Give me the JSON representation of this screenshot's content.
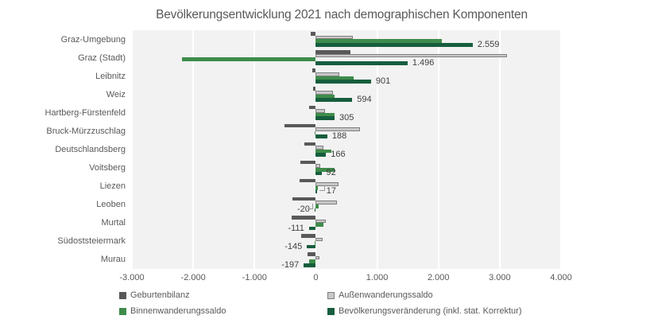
{
  "title": "Bevölkerungsentwicklung 2021 nach demographischen Komponenten",
  "chart_data": {
    "type": "bar",
    "orientation": "horizontal",
    "title": "Bevölkerungsentwicklung 2021 nach demographischen Komponenten",
    "categories": [
      "Graz-Umgebung",
      "Graz (Stadt)",
      "Leibnitz",
      "Weiz",
      "Hartberg-Fürstenfeld",
      "Bruck-Mürzzuschlag",
      "Deutschlandsberg",
      "Voitsberg",
      "Liezen",
      "Leoben",
      "Murtal",
      "Südoststeiermark",
      "Murau"
    ],
    "series": [
      {
        "name": "Geburtenbilanz",
        "color": "#595959",
        "values": [
          -85,
          560,
          -60,
          -45,
          -115,
          -510,
          -190,
          -250,
          -270,
          -380,
          -390,
          -240,
          -130
        ]
      },
      {
        "name": "Außenwanderungssaldo",
        "color": "#c8c8c8",
        "border_color": "#7f7f7f",
        "values": [
          610,
          3120,
          380,
          280,
          150,
          720,
          130,
          70,
          370,
          350,
          160,
          110,
          60
        ]
      },
      {
        "name": "Binnenwanderungssaldo",
        "color": "#3e8c4a",
        "values": [
          2050,
          -2180,
          620,
          310,
          300,
          -20,
          250,
          300,
          30,
          40,
          130,
          -15,
          -115
        ]
      },
      {
        "name": "Bevölkerungsveränderung (inkl. stat. Korrektur)",
        "color": "#165e3e",
        "values": [
          2559,
          1496,
          901,
          594,
          305,
          188,
          166,
          92,
          17,
          -20,
          -111,
          -145,
          -197
        ],
        "data_labels": [
          "2.559",
          "1.496",
          "901",
          "594",
          "305",
          "188",
          "166",
          "92",
          "17",
          "-20",
          "-111",
          "-145",
          "-197"
        ]
      }
    ],
    "xlim": [
      -3000,
      4000
    ],
    "x_ticks": [
      {
        "value": -3000,
        "label": "-3.000"
      },
      {
        "value": -2000,
        "label": "-2.000"
      },
      {
        "value": -1000,
        "label": "-1.000"
      },
      {
        "value": 0,
        "label": "0"
      },
      {
        "value": 1000,
        "label": "1.000"
      },
      {
        "value": 2000,
        "label": "2.000"
      },
      {
        "value": 3000,
        "label": "3.000"
      },
      {
        "value": 4000,
        "label": "4.000"
      }
    ],
    "grid": true,
    "gridline_color": "#ffffff",
    "plot_background": "#f2f2f2",
    "data_label_color": "#404040",
    "axis_text_color": "#595959",
    "legend_position": "bottom"
  }
}
